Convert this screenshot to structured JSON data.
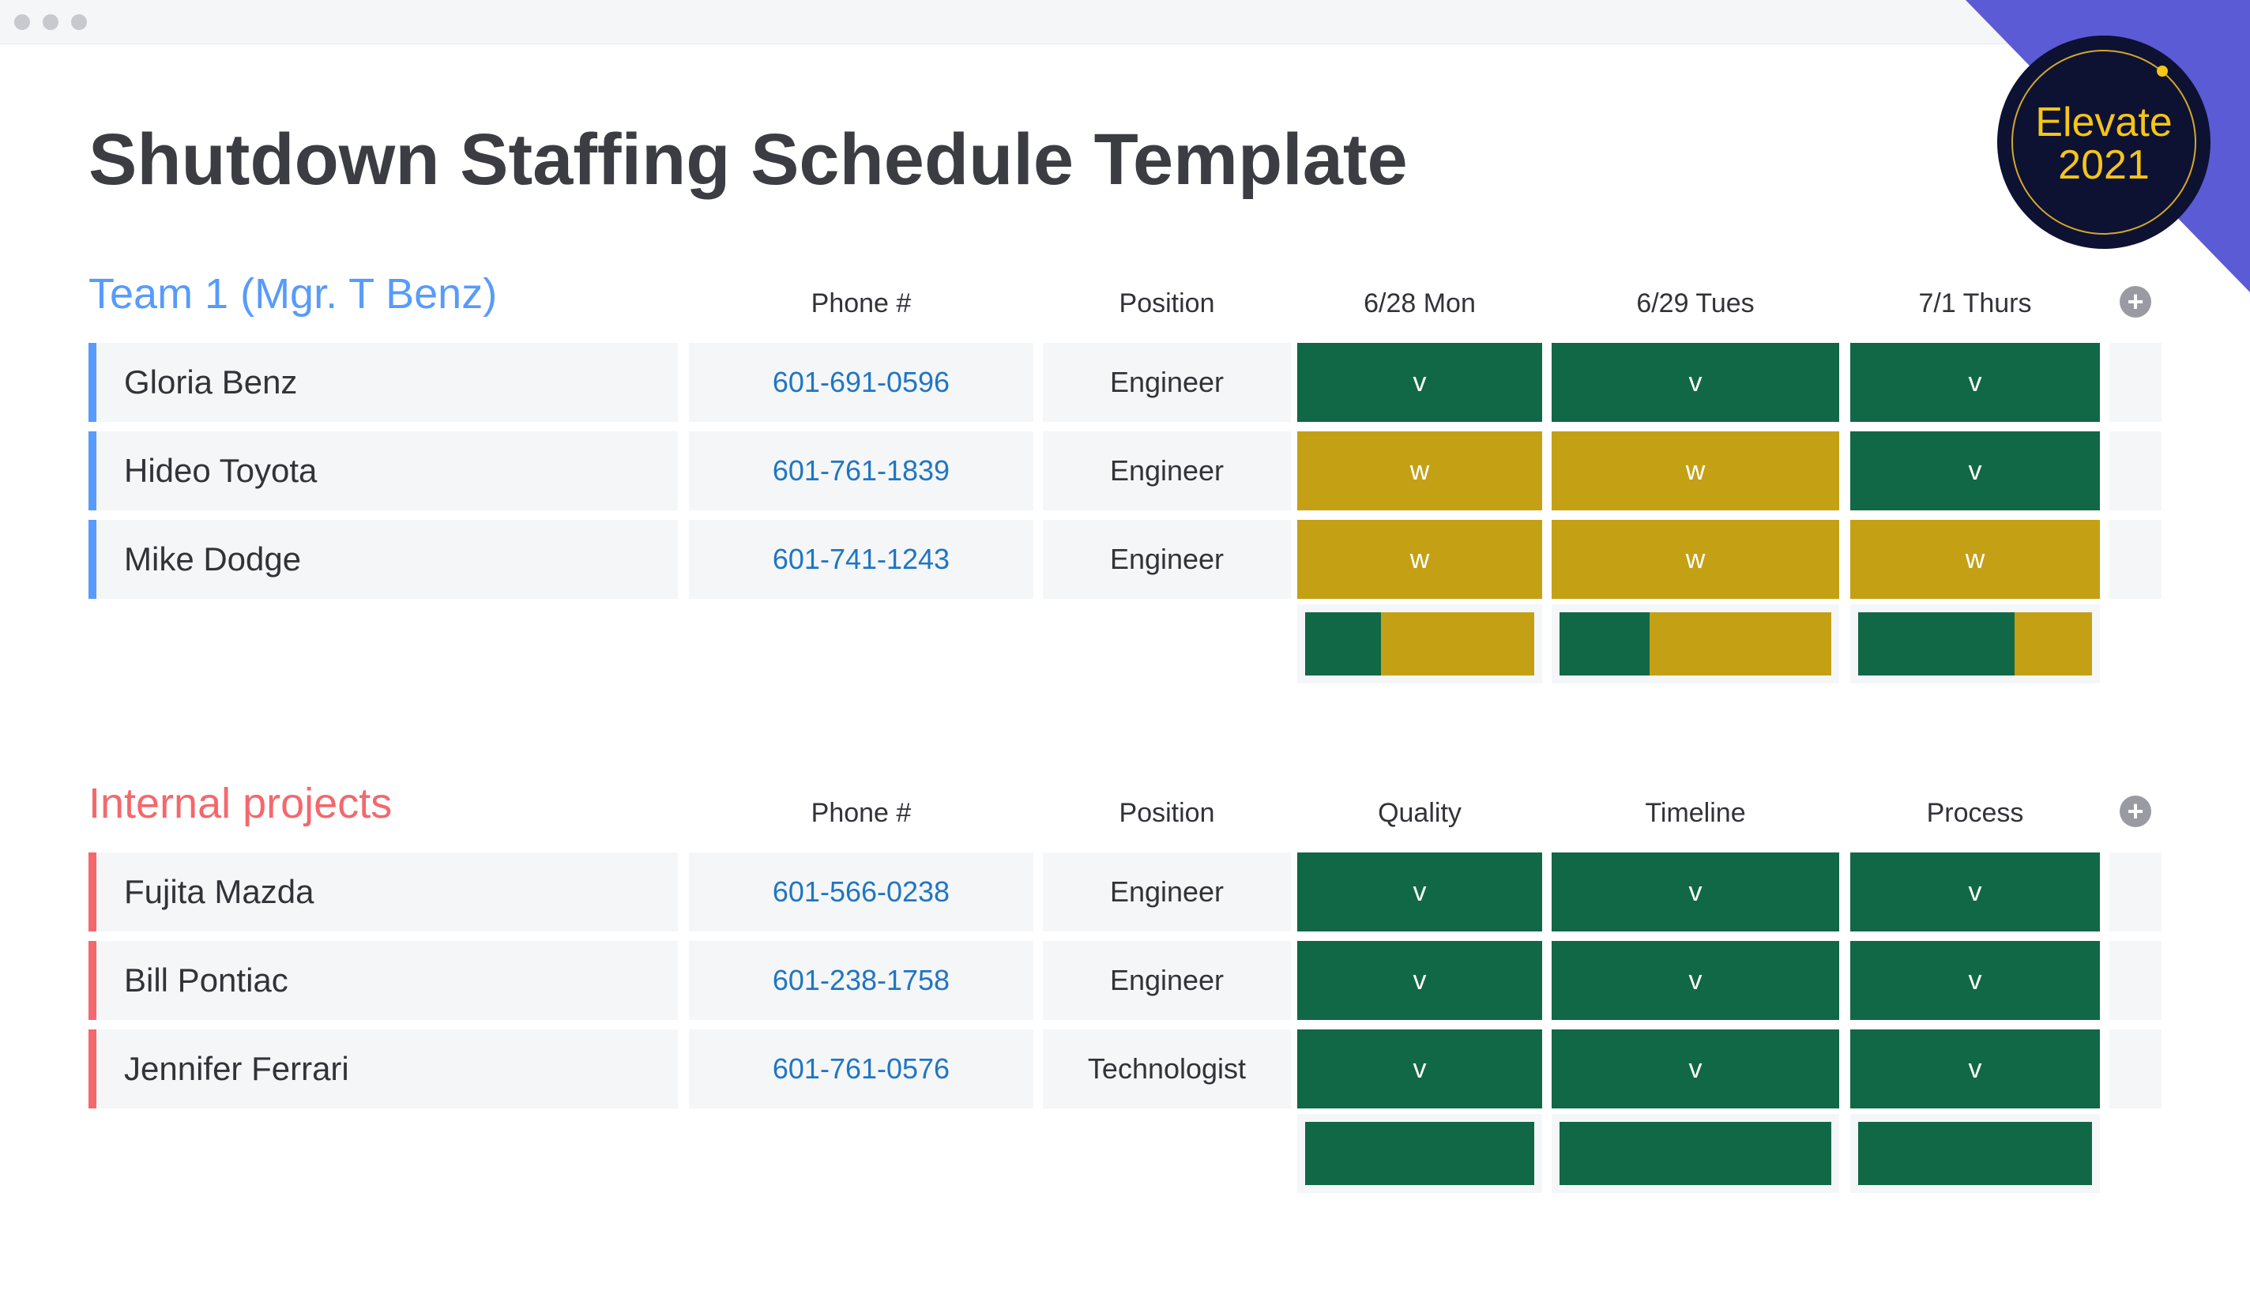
{
  "window": {
    "dots": 3
  },
  "badge": {
    "line1": "Elevate",
    "line2": "2021"
  },
  "title": "Shutdown Staffing Schedule Template",
  "colors": {
    "done": "#116846",
    "working": "#c4a015",
    "team1": "#579bfc",
    "internal": "#f3686c"
  },
  "groups": [
    {
      "title": "Team 1 (Mgr. T Benz)",
      "color": "#579bfc",
      "columns": [
        "Phone #",
        "Position",
        "6/28 Mon",
        "6/29 Tues",
        "7/1 Thurs"
      ],
      "rows": [
        {
          "name": "Gloria Benz",
          "phone": "601-691-0596",
          "position": "Engineer",
          "status": [
            "v",
            "v",
            "v"
          ]
        },
        {
          "name": "Hideo Toyota",
          "phone": "601-761-1839",
          "position": "Engineer",
          "status": [
            "w",
            "w",
            "v"
          ]
        },
        {
          "name": "Mike Dodge",
          "phone": "601-741-1243",
          "position": "Engineer",
          "status": [
            "w",
            "w",
            "w"
          ]
        }
      ],
      "summary": [
        {
          "v_fraction": 0.33,
          "w_fraction": 0.67
        },
        {
          "v_fraction": 0.33,
          "w_fraction": 0.67
        },
        {
          "v_fraction": 0.67,
          "w_fraction": 0.33
        }
      ]
    },
    {
      "title": "Internal projects",
      "color": "#f3686c",
      "columns": [
        "Phone #",
        "Position",
        "Quality",
        "Timeline",
        "Process"
      ],
      "rows": [
        {
          "name": "Fujita Mazda",
          "phone": "601-566-0238",
          "position": "Engineer",
          "status": [
            "v",
            "v",
            "v"
          ]
        },
        {
          "name": "Bill Pontiac",
          "phone": "601-238-1758",
          "position": "Engineer",
          "status": [
            "v",
            "v",
            "v"
          ]
        },
        {
          "name": "Jennifer Ferrari",
          "phone": "601-761-0576",
          "position": "Technologist",
          "status": [
            "v",
            "v",
            "v"
          ]
        }
      ],
      "summary": [
        {
          "v_fraction": 1.0,
          "w_fraction": 0.0
        },
        {
          "v_fraction": 1.0,
          "w_fraction": 0.0
        },
        {
          "v_fraction": 1.0,
          "w_fraction": 0.0
        }
      ]
    }
  ]
}
